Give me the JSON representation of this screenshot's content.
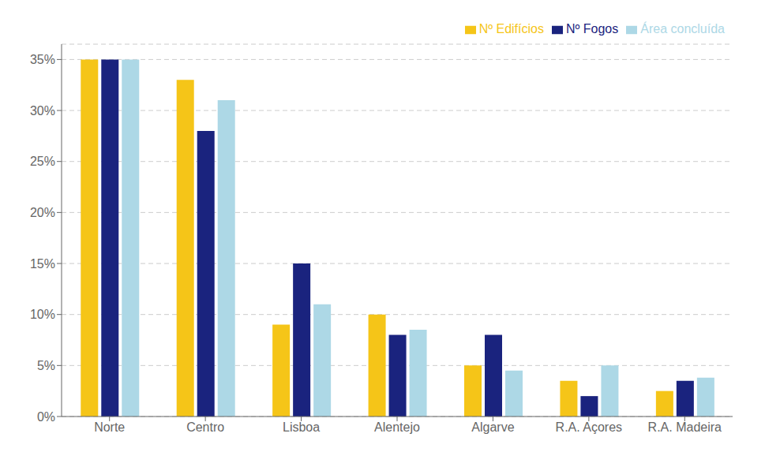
{
  "chart_data": {
    "type": "bar",
    "categories": [
      "Norte",
      "Centro",
      "Lisboa",
      "Alentejo",
      "Algarve",
      "R.A. Açores",
      "R.A. Madeira"
    ],
    "series": [
      {
        "name": "Nº Edifícios",
        "color": "#F5C518",
        "values": [
          35.0,
          33.0,
          9.0,
          10.0,
          5.0,
          3.5,
          2.5
        ]
      },
      {
        "name": "Nº Fogos",
        "color": "#1A237E",
        "values": [
          35.0,
          28.0,
          15.0,
          8.0,
          8.0,
          2.0,
          3.5
        ]
      },
      {
        "name": "Área concluída",
        "color": "#ADD8E6",
        "values": [
          35.0,
          31.0,
          11.0,
          8.5,
          4.5,
          5.0,
          3.8
        ]
      }
    ],
    "ylim": [
      0,
      36.5
    ],
    "yticks": [
      {
        "value": 0,
        "label": "0%"
      },
      {
        "value": 5,
        "label": "5%"
      },
      {
        "value": 10,
        "label": "10%"
      },
      {
        "value": 15,
        "label": "15%"
      },
      {
        "value": 20,
        "label": "20%"
      },
      {
        "value": 25,
        "label": "25%"
      },
      {
        "value": 30,
        "label": "30%"
      },
      {
        "value": 35,
        "label": "35%"
      }
    ],
    "grid": true,
    "legend": "upper right"
  }
}
